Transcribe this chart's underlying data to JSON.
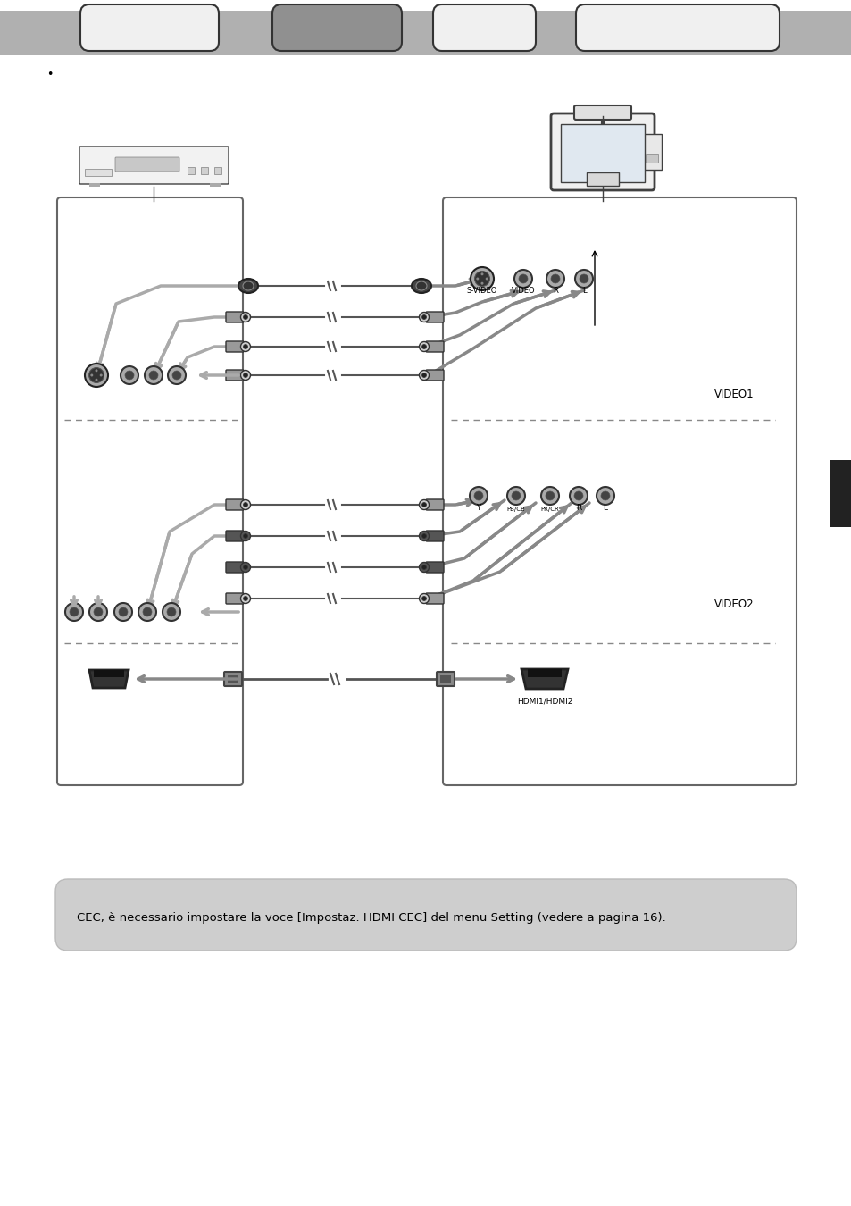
{
  "bg_color": "#ffffff",
  "header_bar_color": "#b0b0b0",
  "tab_filled_color": "#909090",
  "tab_empty_color": "#f0f0f0",
  "tab_edge_color": "#333333",
  "note_bg_color": "#cecece",
  "note_text": "CEC, è necessario impostare la voce [Impostaz. HDMI CEC] del menu Setting (vedere a pagina 16).",
  "note_fontsize": 9.5,
  "bullet_text": "•",
  "label_video1": "VIDEO1",
  "label_video2": "VIDEO2",
  "label_hdmi": "HDMI1/HDMI2",
  "label_svideo": "S-VIDEO",
  "label_video": "VIDEO",
  "label_r": "R",
  "label_l": "L",
  "label_y": "Y",
  "label_pb": "PB/CB",
  "label_pr": "PR/CR",
  "dark_gray": "#404040",
  "mid_gray": "#888888",
  "light_gray": "#aaaaaa",
  "box_edge": "#666666",
  "cable_dark": "#555555",
  "cable_light": "#aaaaaa",
  "connector_fill": "#999999",
  "connector_dark": "#444444",
  "arrow_gray": "#888888",
  "black_bar_color": "#222222"
}
